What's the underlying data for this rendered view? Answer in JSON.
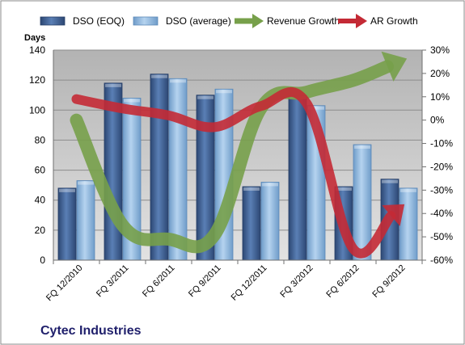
{
  "company": "Cytec Industries",
  "colors": {
    "dso_eoq": "#3f5f8f",
    "dso_avg": "#8fb6dc",
    "revenue_growth": "#77a04a",
    "ar_growth": "#c42a35",
    "plot_background": "#c4c4c4"
  },
  "chart_data": {
    "type": "bar",
    "categories": [
      "FQ 12/2010",
      "FQ 3/2011",
      "FQ 6/2011",
      "FQ 9/2011",
      "FQ 12/2011",
      "FQ 3/2012",
      "FQ 6/2012",
      "FQ 9/2012"
    ],
    "y_left": {
      "label": "Days",
      "lim": [
        0,
        140
      ],
      "ticks": [
        "0",
        "20",
        "40",
        "60",
        "80",
        "100",
        "120",
        "140"
      ]
    },
    "y_right": {
      "label": "",
      "lim": [
        -60,
        30
      ],
      "ticks": [
        "-60%",
        "-50%",
        "-40%",
        "-30%",
        "-20%",
        "-10%",
        "0%",
        "10%",
        "20%",
        "30%"
      ]
    },
    "grid": true,
    "legend_position": "top",
    "series": [
      {
        "name": "DSO (EOQ)",
        "type": "bar",
        "axis": "left",
        "values": [
          48,
          118,
          124,
          110,
          49,
          110,
          49,
          54
        ]
      },
      {
        "name": "DSO (average)",
        "type": "bar",
        "axis": "left",
        "values": [
          53,
          108,
          121,
          114,
          52,
          103,
          77,
          48
        ]
      },
      {
        "name": "Revenue Growth",
        "type": "line-arrow",
        "axis": "right",
        "values": [
          0,
          -45,
          -51,
          -49,
          5,
          12,
          17,
          25
        ]
      },
      {
        "name": "AR Growth",
        "type": "line-arrow",
        "axis": "right",
        "values": [
          9,
          5,
          2,
          -3,
          6,
          7,
          -55,
          -38
        ]
      }
    ]
  }
}
